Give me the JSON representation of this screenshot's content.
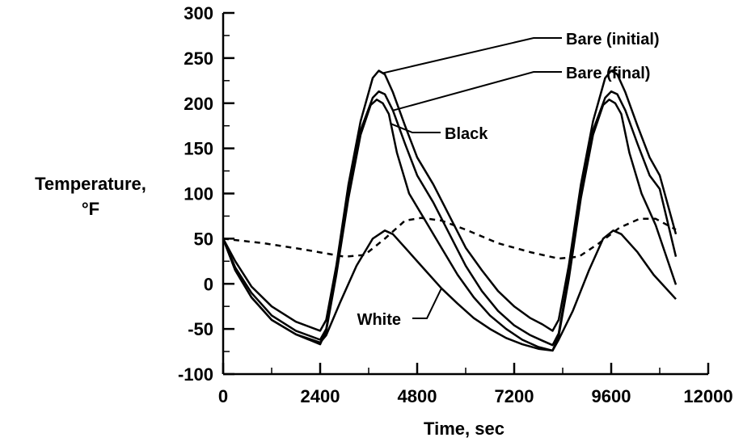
{
  "chart_data": {
    "type": "line",
    "title": "",
    "xlabel": "Time, sec",
    "ylabel_line1": "Temperature,",
    "ylabel_line2": "°F",
    "xlim": [
      0,
      12000
    ],
    "ylim": [
      -100,
      300
    ],
    "x_ticks": [
      0,
      2400,
      4800,
      7200,
      9600,
      12000
    ],
    "x_tick_labels": [
      "0",
      "2400",
      "4800",
      "7200",
      "9600",
      "12000"
    ],
    "y_ticks": [
      -100,
      -50,
      0,
      50,
      100,
      150,
      200,
      250,
      300
    ],
    "y_tick_labels": [
      "-100",
      "-50",
      "0",
      "50",
      "100",
      "150",
      "200",
      "250",
      "300"
    ],
    "grid": false,
    "legend": "callout labels",
    "series": [
      {
        "name": "Bare (initial)",
        "style": "solid",
        "points": [
          [
            0,
            50
          ],
          [
            300,
            25
          ],
          [
            700,
            -3
          ],
          [
            1200,
            -25
          ],
          [
            1800,
            -42
          ],
          [
            2400,
            -52
          ],
          [
            2550,
            -40
          ],
          [
            2800,
            20
          ],
          [
            3100,
            110
          ],
          [
            3400,
            180
          ],
          [
            3700,
            228
          ],
          [
            3850,
            236
          ],
          [
            4000,
            232
          ],
          [
            4200,
            212
          ],
          [
            4500,
            175
          ],
          [
            4800,
            140
          ],
          [
            5200,
            110
          ],
          [
            5600,
            75
          ],
          [
            6000,
            40
          ],
          [
            6400,
            15
          ],
          [
            6800,
            -8
          ],
          [
            7200,
            -25
          ],
          [
            7600,
            -38
          ],
          [
            7900,
            -45
          ],
          [
            8150,
            -52
          ],
          [
            8300,
            -40
          ],
          [
            8550,
            20
          ],
          [
            8850,
            110
          ],
          [
            9150,
            180
          ],
          [
            9450,
            228
          ],
          [
            9600,
            236
          ],
          [
            9750,
            232
          ],
          [
            9950,
            212
          ],
          [
            10250,
            175
          ],
          [
            10550,
            140
          ],
          [
            10800,
            120
          ],
          [
            11200,
            55
          ]
        ]
      },
      {
        "name": "Bare (final)",
        "style": "solid",
        "points": [
          [
            0,
            50
          ],
          [
            300,
            18
          ],
          [
            700,
            -10
          ],
          [
            1200,
            -35
          ],
          [
            1800,
            -52
          ],
          [
            2400,
            -62
          ],
          [
            2550,
            -50
          ],
          [
            2800,
            15
          ],
          [
            3100,
            100
          ],
          [
            3400,
            170
          ],
          [
            3700,
            206
          ],
          [
            3850,
            213
          ],
          [
            4000,
            210
          ],
          [
            4200,
            192
          ],
          [
            4500,
            155
          ],
          [
            4800,
            120
          ],
          [
            5200,
            90
          ],
          [
            5600,
            55
          ],
          [
            6000,
            20
          ],
          [
            6400,
            -8
          ],
          [
            6800,
            -30
          ],
          [
            7200,
            -46
          ],
          [
            7600,
            -57
          ],
          [
            7900,
            -63
          ],
          [
            8150,
            -68
          ],
          [
            8300,
            -55
          ],
          [
            8550,
            10
          ],
          [
            8850,
            100
          ],
          [
            9150,
            170
          ],
          [
            9450,
            206
          ],
          [
            9600,
            213
          ],
          [
            9750,
            210
          ],
          [
            9950,
            192
          ],
          [
            10250,
            155
          ],
          [
            10550,
            120
          ],
          [
            10800,
            105
          ],
          [
            11200,
            30
          ]
        ]
      },
      {
        "name": "Black",
        "style": "solid",
        "points": [
          [
            0,
            50
          ],
          [
            300,
            15
          ],
          [
            700,
            -15
          ],
          [
            1200,
            -40
          ],
          [
            1800,
            -56
          ],
          [
            2400,
            -67
          ],
          [
            2550,
            -52
          ],
          [
            2800,
            10
          ],
          [
            3100,
            95
          ],
          [
            3400,
            165
          ],
          [
            3650,
            198
          ],
          [
            3800,
            204
          ],
          [
            3950,
            200
          ],
          [
            4100,
            188
          ],
          [
            4300,
            145
          ],
          [
            4600,
            100
          ],
          [
            5000,
            70
          ],
          [
            5400,
            40
          ],
          [
            5800,
            10
          ],
          [
            6200,
            -15
          ],
          [
            6600,
            -35
          ],
          [
            7000,
            -50
          ],
          [
            7400,
            -62
          ],
          [
            7800,
            -70
          ],
          [
            8150,
            -74
          ],
          [
            8300,
            -58
          ],
          [
            8550,
            5
          ],
          [
            8850,
            95
          ],
          [
            9150,
            165
          ],
          [
            9400,
            198
          ],
          [
            9550,
            204
          ],
          [
            9700,
            200
          ],
          [
            9850,
            188
          ],
          [
            10050,
            145
          ],
          [
            10350,
            100
          ],
          [
            10700,
            65
          ],
          [
            11200,
            -1
          ]
        ]
      },
      {
        "name": "White",
        "style": "solid",
        "points": [
          [
            0,
            50
          ],
          [
            300,
            15
          ],
          [
            700,
            -15
          ],
          [
            1200,
            -40
          ],
          [
            1800,
            -56
          ],
          [
            2400,
            -65
          ],
          [
            2550,
            -57
          ],
          [
            2900,
            -20
          ],
          [
            3300,
            20
          ],
          [
            3700,
            50
          ],
          [
            4000,
            59
          ],
          [
            4200,
            55
          ],
          [
            4600,
            35
          ],
          [
            5000,
            15
          ],
          [
            5400,
            -5
          ],
          [
            5800,
            -22
          ],
          [
            6200,
            -38
          ],
          [
            6600,
            -50
          ],
          [
            7000,
            -60
          ],
          [
            7400,
            -67
          ],
          [
            7800,
            -72
          ],
          [
            8150,
            -74
          ],
          [
            8300,
            -62
          ],
          [
            8650,
            -30
          ],
          [
            9050,
            15
          ],
          [
            9400,
            50
          ],
          [
            9650,
            59
          ],
          [
            9850,
            55
          ],
          [
            10250,
            35
          ],
          [
            10650,
            10
          ],
          [
            11200,
            -17
          ]
        ]
      },
      {
        "name": "",
        "style": "dashed",
        "points": [
          [
            0,
            50
          ],
          [
            1000,
            45
          ],
          [
            2000,
            38
          ],
          [
            3000,
            30
          ],
          [
            3500,
            32
          ],
          [
            4000,
            50
          ],
          [
            4500,
            70
          ],
          [
            4900,
            73
          ],
          [
            5400,
            70
          ],
          [
            6000,
            60
          ],
          [
            6800,
            45
          ],
          [
            7600,
            35
          ],
          [
            8300,
            28
          ],
          [
            8800,
            30
          ],
          [
            9300,
            45
          ],
          [
            9800,
            62
          ],
          [
            10300,
            72
          ],
          [
            10700,
            72
          ],
          [
            11200,
            60
          ]
        ]
      }
    ],
    "annotations": [
      {
        "label": "Bare (initial)",
        "series": 0,
        "at_x": 3950
      },
      {
        "label": "Bare (final)",
        "series": 1,
        "at_x": 4200
      },
      {
        "label": "Black",
        "series": 2,
        "at_x": 4150
      },
      {
        "label": "White",
        "series": 3,
        "at_x": 5400
      }
    ]
  }
}
